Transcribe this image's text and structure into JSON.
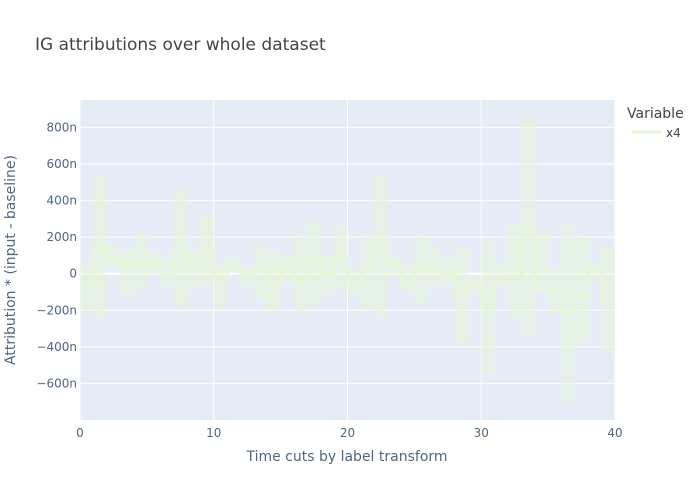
{
  "chart_data": {
    "type": "line",
    "title": "IG attributions over whole dataset",
    "xlabel": "Time cuts by label transform",
    "ylabel": "Attribution * (input - baseline)",
    "xlim": [
      0,
      40
    ],
    "ylim": [
      -800,
      950
    ],
    "y_unit_note": "values in nano units (n)",
    "x_ticks": [
      0,
      10,
      20,
      30,
      40
    ],
    "x_tick_labels": [
      "0",
      "10",
      "20",
      "30",
      "40"
    ],
    "y_ticks": [
      -600,
      -400,
      -200,
      0,
      200,
      400,
      600,
      800
    ],
    "y_tick_labels": [
      "−600n",
      "−400n",
      "−200n",
      "0",
      "200n",
      "400n",
      "600n",
      "800n"
    ],
    "grid": true,
    "legend": {
      "title": "Variable",
      "position": "right"
    },
    "line_shape": "step",
    "series": [
      {
        "name": "x4",
        "color": "#e5f5d5",
        "x": [
          0,
          1,
          2,
          3,
          4,
          5,
          6,
          7,
          8,
          9,
          10,
          11,
          12,
          13,
          14,
          15,
          16,
          17,
          18,
          19,
          20,
          21,
          22,
          23,
          24,
          25,
          26,
          27,
          28,
          29,
          30,
          31,
          32,
          33,
          34,
          35,
          36,
          37,
          38,
          39
        ],
        "mean": [
          -75,
          150,
          70,
          30,
          60,
          40,
          -10,
          140,
          20,
          130,
          -20,
          50,
          -10,
          20,
          -50,
          20,
          -30,
          90,
          0,
          90,
          -50,
          30,
          150,
          40,
          -60,
          20,
          40,
          0,
          -100,
          -60,
          -190,
          -30,
          -10,
          260,
          -90,
          -90,
          -210,
          -120,
          20,
          -150
        ],
        "upper": [
          60,
          530,
          160,
          120,
          220,
          120,
          80,
          460,
          120,
          320,
          40,
          80,
          30,
          150,
          120,
          100,
          200,
          280,
          100,
          260,
          20,
          200,
          540,
          90,
          50,
          200,
          120,
          80,
          140,
          -20,
          180,
          60,
          280,
          860,
          220,
          30,
          270,
          200,
          50,
          150
        ],
        "lower": [
          -200,
          -240,
          30,
          -120,
          -90,
          -10,
          -60,
          -180,
          -90,
          -60,
          -190,
          10,
          -60,
          -140,
          -200,
          -60,
          -220,
          -160,
          -120,
          -80,
          -110,
          -190,
          -230,
          -20,
          -100,
          -160,
          -60,
          -60,
          -380,
          -120,
          -550,
          -70,
          -240,
          -350,
          -80,
          -220,
          -700,
          -390,
          -50,
          -440
        ]
      }
    ]
  }
}
